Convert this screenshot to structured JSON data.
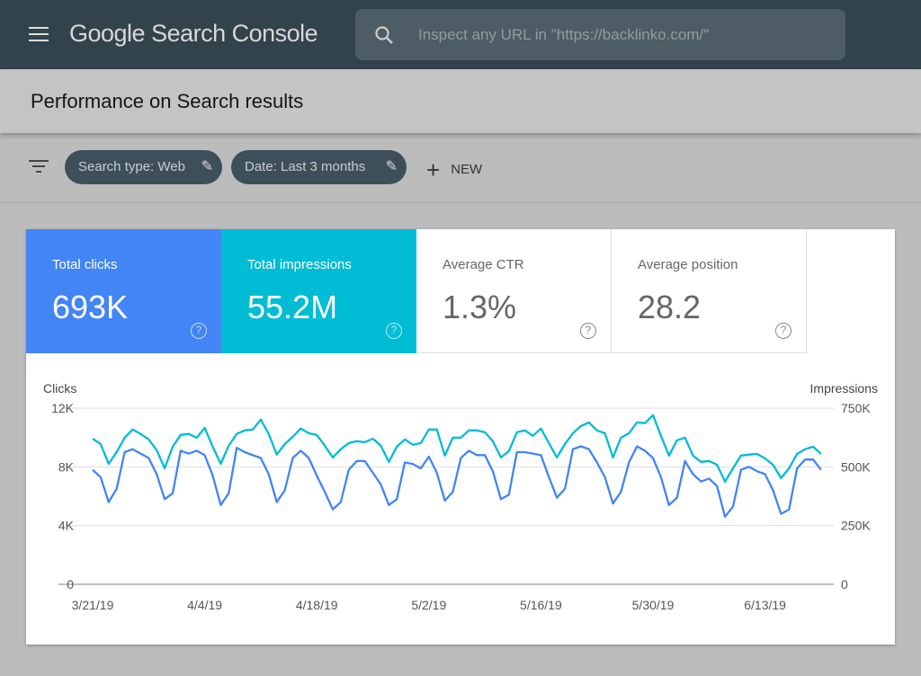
{
  "header": {
    "app_title": "Google Search Console",
    "search_placeholder": "Inspect any URL in \"https://backlinko.com/\""
  },
  "page_title": "Performance on Search results",
  "filters": {
    "chips": [
      {
        "label": "Search type: Web"
      },
      {
        "label": "Date: Last 3 months"
      }
    ],
    "new_label": "NEW"
  },
  "metrics": [
    {
      "label": "Total clicks",
      "value": "693K",
      "color": "#4285f4"
    },
    {
      "label": "Total impressions",
      "value": "55.2M",
      "color": "#00bcd4"
    },
    {
      "label": "Average CTR",
      "value": "1.3%"
    },
    {
      "label": "Average position",
      "value": "28.2"
    }
  ],
  "chart_data": {
    "type": "line",
    "left_axis": {
      "label": "Clicks",
      "ticks": [
        "0",
        "4K",
        "8K",
        "12K"
      ],
      "tick_values": [
        0,
        4,
        8,
        12
      ],
      "range": [
        0,
        12
      ]
    },
    "right_axis": {
      "label": "Impressions",
      "ticks": [
        "0",
        "250K",
        "500K",
        "750K"
      ],
      "tick_values": [
        0,
        250,
        500,
        750
      ],
      "range": [
        0,
        750
      ]
    },
    "x_ticks": [
      {
        "label": "3/21/19",
        "index": 0
      },
      {
        "label": "4/4/19",
        "index": 14
      },
      {
        "label": "4/18/19",
        "index": 28
      },
      {
        "label": "5/2/19",
        "index": 42
      },
      {
        "label": "5/16/19",
        "index": 56
      },
      {
        "label": "5/30/19",
        "index": 70
      },
      {
        "label": "6/13/19",
        "index": 84
      }
    ],
    "series": [
      {
        "name": "Clicks",
        "unit": "K",
        "axis": "left",
        "color": "#4285f4",
        "values": [
          7.8,
          7.3,
          5.6,
          6.5,
          9.0,
          9.2,
          8.9,
          8.6,
          7.5,
          5.8,
          6.2,
          9.1,
          8.9,
          9.1,
          8.8,
          7.4,
          5.4,
          6.2,
          9.3,
          9.0,
          8.8,
          8.6,
          7.5,
          5.6,
          6.4,
          8.6,
          9.1,
          8.6,
          7.4,
          6.3,
          5.1,
          5.6,
          7.8,
          8.4,
          8.4,
          7.6,
          6.8,
          5.4,
          5.8,
          8.3,
          8.2,
          7.9,
          8.7,
          7.6,
          5.7,
          6.3,
          8.6,
          9.1,
          8.8,
          8.8,
          7.7,
          5.8,
          6.1,
          9.0,
          9.0,
          8.9,
          8.8,
          7.3,
          5.9,
          6.5,
          9.2,
          9.4,
          9.2,
          8.3,
          7.3,
          5.5,
          6.3,
          8.3,
          9.4,
          9.1,
          8.6,
          7.3,
          5.4,
          5.9,
          8.4,
          7.5,
          7.0,
          7.2,
          6.7,
          4.6,
          5.3,
          7.8,
          8.0,
          7.7,
          7.5,
          6.4,
          4.8,
          5.1,
          7.9,
          8.5,
          8.5,
          7.8
        ]
      },
      {
        "name": "Impressions",
        "unit": "K",
        "axis": "right",
        "color": "#00bcd4",
        "values": [
          620,
          597,
          513,
          563,
          624,
          659,
          640,
          617,
          571,
          494,
          586,
          636,
          640,
          624,
          666,
          586,
          513,
          590,
          640,
          655,
          659,
          701,
          640,
          552,
          597,
          628,
          663,
          643,
          636,
          590,
          540,
          575,
          601,
          609,
          605,
          620,
          590,
          521,
          586,
          617,
          594,
          601,
          659,
          659,
          548,
          624,
          624,
          655,
          655,
          647,
          609,
          540,
          567,
          647,
          655,
          632,
          663,
          601,
          540,
          597,
          643,
          674,
          689,
          655,
          643,
          540,
          624,
          643,
          689,
          686,
          720,
          632,
          548,
          613,
          624,
          548,
          521,
          525,
          509,
          437,
          494,
          548,
          552,
          555,
          536,
          509,
          452,
          494,
          555,
          575,
          586,
          555
        ]
      }
    ]
  }
}
